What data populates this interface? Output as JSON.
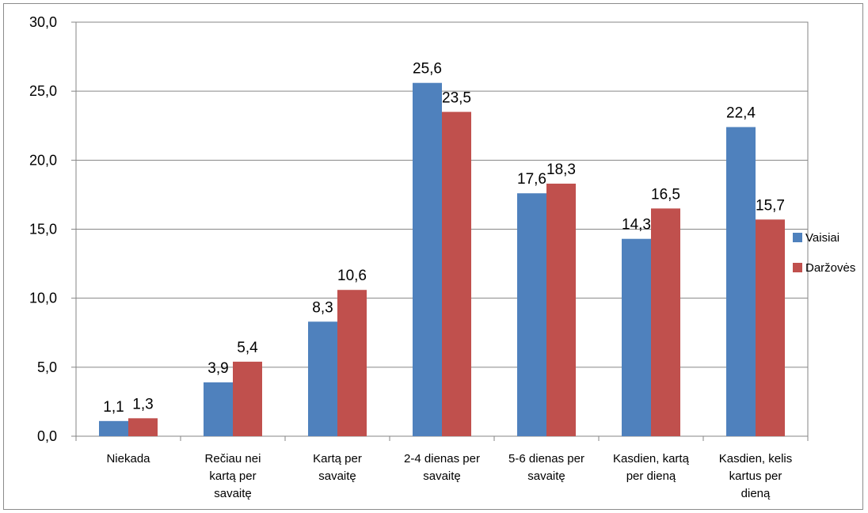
{
  "chart_data": {
    "type": "bar",
    "title": "",
    "xlabel": "",
    "ylabel": "",
    "ylim": [
      0,
      30
    ],
    "yticks": [
      "0,0",
      "5,0",
      "10,0",
      "15,0",
      "20,0",
      "25,0",
      "30,0"
    ],
    "ytick_values": [
      0,
      5,
      10,
      15,
      20,
      25,
      30
    ],
    "grid": true,
    "legend_position": "right",
    "categories": [
      [
        "Niekada"
      ],
      [
        "Rečiau nei",
        "kartą per",
        "savaitę"
      ],
      [
        "Kartą per",
        "savaitę"
      ],
      [
        "2-4 dienas per",
        "savaitę"
      ],
      [
        "5-6 dienas per",
        "savaitę"
      ],
      [
        "Kasdien, kartą",
        "per dieną"
      ],
      [
        "Kasdien, kelis",
        "kartus per",
        "dieną"
      ]
    ],
    "series": [
      {
        "name": "Vaisiai",
        "color": "#4f81bd",
        "values": [
          1.1,
          3.9,
          8.3,
          25.6,
          17.6,
          14.3,
          22.4
        ],
        "labels": [
          "1,1",
          "3,9",
          "8,3",
          "25,6",
          "17,6",
          "14,3",
          "22,4"
        ]
      },
      {
        "name": "Daržovės",
        "color": "#c0504d",
        "values": [
          1.3,
          5.4,
          10.6,
          23.5,
          18.3,
          16.5,
          15.7
        ],
        "labels": [
          "1,3",
          "5,4",
          "10,6",
          "23,5",
          "18,3",
          "16,5",
          "15,7"
        ]
      }
    ]
  }
}
